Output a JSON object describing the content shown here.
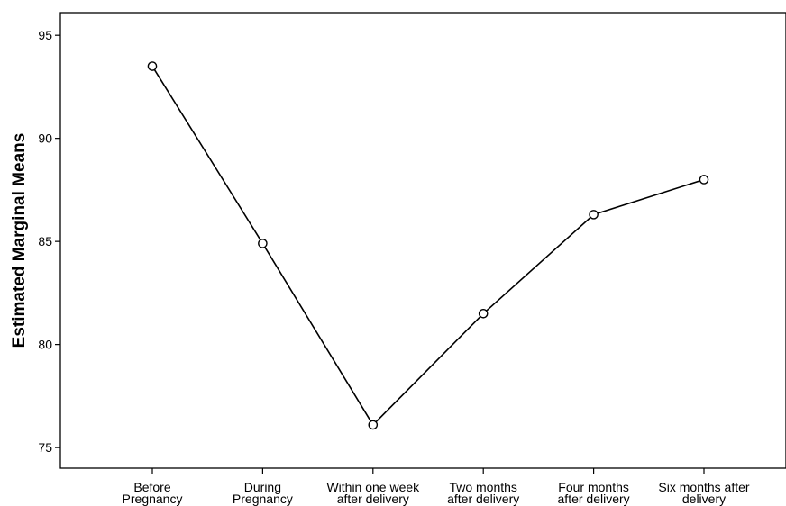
{
  "chart_data": {
    "type": "line",
    "title": "",
    "xlabel": "",
    "ylabel": "Estimated Marginal Means",
    "ylim": [
      74,
      96.1
    ],
    "y_ticks": [
      75,
      80,
      85,
      90,
      95
    ],
    "grid": false,
    "legend": "none",
    "categories": [
      [
        "Before",
        "Pregnancy"
      ],
      [
        "During",
        "Pregnancy"
      ],
      [
        "Within one week",
        "after delivery"
      ],
      [
        "Two months",
        "after delivery"
      ],
      [
        "Four months",
        "after delivery"
      ],
      [
        "Six months after",
        "delivery"
      ]
    ],
    "series": [
      {
        "values": [
          93.5,
          84.9,
          76.1,
          81.5,
          86.3,
          88.0
        ]
      }
    ],
    "colors": {
      "line": "#000000",
      "axis": "#000000",
      "marker_fill": "#ffffff"
    }
  }
}
